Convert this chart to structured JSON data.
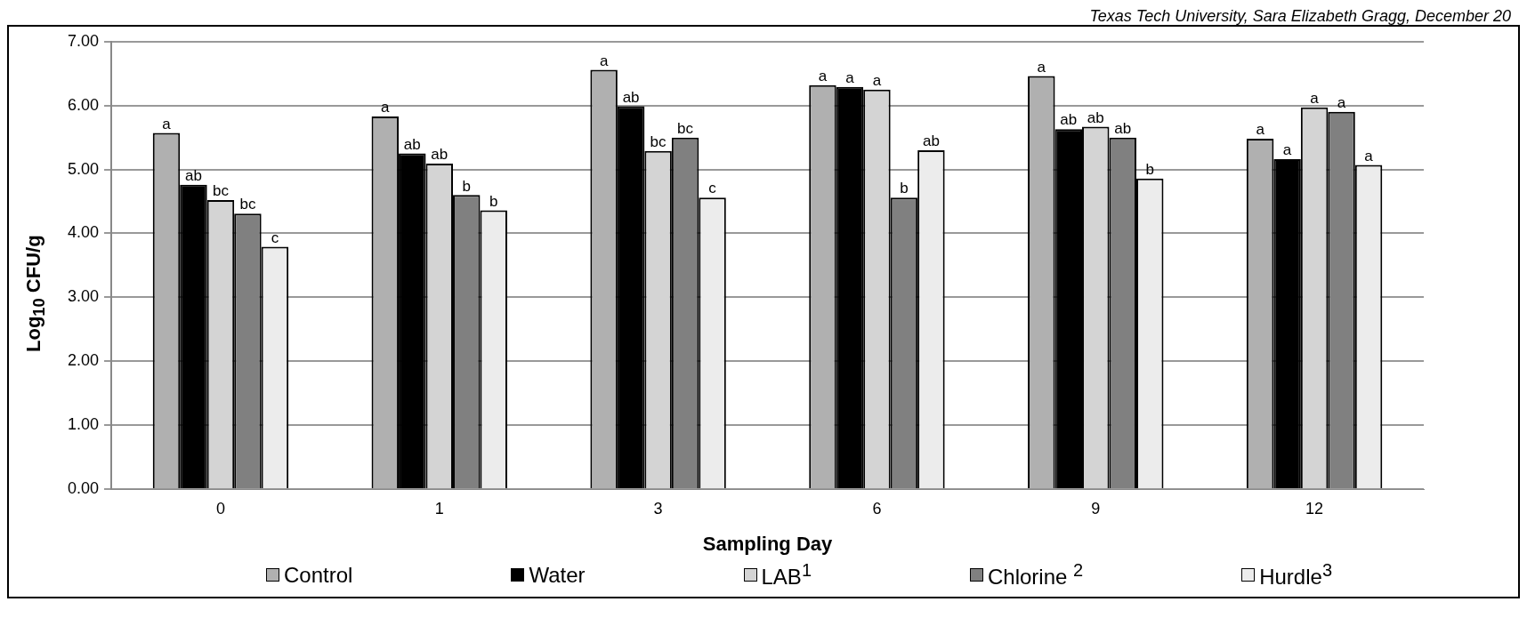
{
  "chart_data": {
    "type": "bar",
    "xlabel": "Sampling Day",
    "ylabel": "Log$_{10}$ CFU/g",
    "annotations": [
      "Texas Tech University, Sara Elizabeth Gragg, December 20"
    ],
    "categories": [
      "0",
      "1",
      "3",
      "6",
      "9",
      "12"
    ],
    "ylim": [
      0,
      7
    ],
    "yticks": [
      {
        "value": 0,
        "label": "0.00"
      },
      {
        "value": 1,
        "label": "1.00"
      },
      {
        "value": 2,
        "label": "2.00"
      },
      {
        "value": 3,
        "label": "3.00"
      },
      {
        "value": 4,
        "label": "4.00"
      },
      {
        "value": 5,
        "label": "5.00"
      },
      {
        "value": 6,
        "label": "6.00"
      },
      {
        "value": 7,
        "label": "7.00"
      }
    ],
    "grid": "y",
    "legend": "bottom",
    "series": [
      {
        "name": "Control",
        "color": "#b0b0b0",
        "values": [
          5.57,
          5.83,
          6.56,
          6.32,
          6.46,
          5.48
        ],
        "value_labels": [
          "a",
          "a",
          "a",
          "a",
          "a",
          "a"
        ]
      },
      {
        "name": "Water",
        "color": "#000000",
        "values": [
          4.76,
          5.25,
          5.99,
          6.29,
          5.63,
          5.16
        ],
        "value_labels": [
          "ab",
          "ab",
          "ab",
          "a",
          "ab",
          "a"
        ]
      },
      {
        "name": "LAB$^{1}$",
        "color": "#d4d4d4",
        "values": [
          4.52,
          5.09,
          5.29,
          6.25,
          5.67,
          5.97
        ],
        "value_labels": [
          "bc",
          "ab",
          "bc",
          "a",
          "ab",
          "a"
        ]
      },
      {
        "name": "Chlorine $^{2}$",
        "color": "#808080",
        "values": [
          4.31,
          4.6,
          5.5,
          4.56,
          5.5,
          5.9
        ],
        "value_labels": [
          "bc",
          "b",
          "bc",
          "b",
          "ab",
          "a"
        ]
      },
      {
        "name": "Hurdle$^{3}$",
        "color": "#ececec",
        "values": [
          3.79,
          4.36,
          4.56,
          5.3,
          4.86,
          5.07
        ],
        "value_labels": [
          "c",
          "b",
          "c",
          "ab",
          "b",
          "a"
        ]
      }
    ]
  }
}
